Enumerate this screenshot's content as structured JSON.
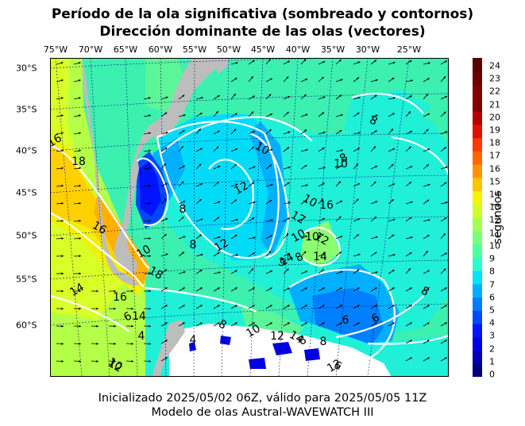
{
  "header": {
    "title_line1": "Período de la ola significativa (sombreado y contornos)",
    "title_line2": "Dirección dominante de las olas (vectores)"
  },
  "footer": {
    "line1": "Inicializado 2025/05/02 06Z, válido para 2025/05/05 11Z",
    "line2": "Modelo de olas Austral-WAVEWATCH III"
  },
  "map": {
    "longitude_labels": [
      "75°W",
      "70°W",
      "65°W",
      "60°W",
      "55°W",
      "50°W",
      "45°W",
      "40°W",
      "35°W",
      "30°W",
      "25°W"
    ],
    "latitude_labels": [
      "30°S",
      "35°S",
      "40°S",
      "45°S",
      "50°S",
      "55°S",
      "60°S"
    ],
    "contour_labels": [
      "16",
      "18",
      "16",
      "14",
      "16",
      "18",
      "10",
      "8",
      "10",
      "12",
      "8",
      "10",
      "12",
      "16",
      "12",
      "10",
      "14",
      "9",
      "8",
      "10",
      "12",
      "14",
      "10",
      "8",
      "8",
      "6",
      "8",
      "6",
      "4",
      "8",
      "10",
      "12",
      "14",
      "8",
      "8",
      "6",
      "6",
      "4",
      "10",
      "12",
      "14",
      "12"
    ],
    "colors": {
      "land": "#bdbdbd",
      "contour": "#ffffff",
      "arrow": "#000000",
      "grid": "#000080"
    }
  },
  "colorbar": {
    "ticks": [
      "0",
      "1",
      "2",
      "3",
      "4",
      "5",
      "6",
      "7",
      "8",
      "9",
      "10",
      "11",
      "12",
      "13",
      "14",
      "15",
      "16",
      "17",
      "18",
      "19",
      "20",
      "21",
      "22",
      "23",
      "24"
    ],
    "unit_label": "segundos",
    "colors": [
      "#00007f",
      "#0000b2",
      "#0000e5",
      "#0014ff",
      "#0048ff",
      "#007cff",
      "#00b0ff",
      "#00e4f7",
      "#29ffce",
      "#53ff9f",
      "#7cff79",
      "#a3ff53",
      "#ceff29",
      "#f7f400",
      "#ffc400",
      "#ff9400",
      "#ff6700",
      "#ff3700",
      "#e50e00",
      "#b20000",
      "#7f0000",
      "#7f0000",
      "#6a0000",
      "#5a0000"
    ]
  }
}
